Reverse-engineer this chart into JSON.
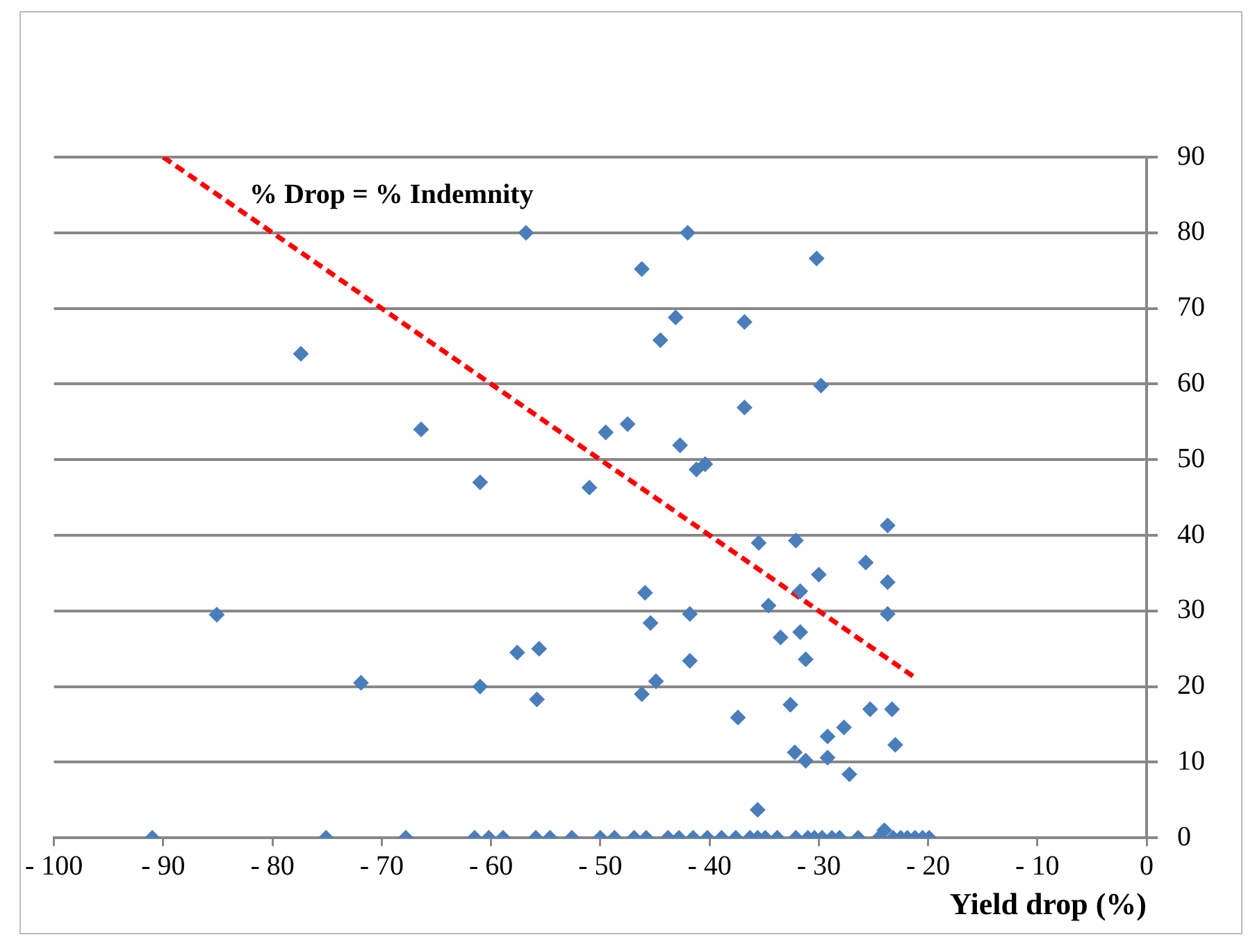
{
  "chart_data": {
    "type": "scatter",
    "xlabel": "Yield drop (%)",
    "xlim": [
      -100,
      0
    ],
    "xticks": [
      {
        "value": -100,
        "label": "- 100"
      },
      {
        "value": -90,
        "label": "- 90"
      },
      {
        "value": -80,
        "label": "- 80"
      },
      {
        "value": -70,
        "label": "- 70"
      },
      {
        "value": -60,
        "label": "- 60"
      },
      {
        "value": -50,
        "label": "- 50"
      },
      {
        "value": -40,
        "label": "- 40"
      },
      {
        "value": -30,
        "label": "- 30"
      },
      {
        "value": -20,
        "label": "- 20"
      },
      {
        "value": -10,
        "label": "- 10"
      },
      0
    ],
    "ylim": [
      0,
      90
    ],
    "yticks": [
      0,
      10,
      20,
      30,
      40,
      50,
      60,
      70,
      80,
      90
    ],
    "grid": "y",
    "legend": false,
    "marker": "diamond",
    "series": [
      {
        "color": "#4a7ebb",
        "x": [
          -77.4,
          -66.4,
          -85.1,
          -71.9,
          -61,
          -61,
          -56.8,
          -57.6,
          -55.6,
          -55.8,
          -51,
          -49.5,
          -47.5,
          -46.2,
          -45.9,
          -45.4,
          -46.2,
          -44.9,
          -42,
          -43.1,
          -44.5,
          -42.7,
          -41.2,
          -40.4,
          -41.8,
          -41.8,
          -36.8,
          -36.8,
          -37.4,
          -35.6,
          -35.5,
          -32.1,
          -34.6,
          -33.5,
          -31.7,
          -31.7,
          -31.2,
          -32.6,
          -30,
          -30.2,
          -29.8,
          -29.2,
          -32.2,
          -31.2,
          -29.2,
          -27.7,
          -27.2,
          -25.7,
          -25.3,
          -23.7,
          -23.7,
          -23.7,
          -23.3,
          -23,
          -24,
          -91,
          -75.1,
          -67.8,
          -61.5,
          -60.2,
          -58.9,
          -55.9,
          -54.6,
          -52.6,
          -50,
          -48.7,
          -46.9,
          -45.8,
          -43.8,
          -42.8,
          -41.5,
          -40.2,
          -38.9,
          -37.6,
          -36.3,
          -35.6,
          -34.9,
          -33.8,
          -32.1,
          -31,
          -30.4,
          -29.7,
          -28.8,
          -28.1,
          -26.4,
          -24.5,
          -23.2,
          -22.5,
          -21.9,
          -21.2,
          -20.5,
          -19.9
        ],
        "values": [
          64,
          54,
          29.5,
          20.5,
          47,
          20,
          80,
          24.5,
          25,
          18.3,
          46.3,
          53.6,
          54.7,
          75.2,
          32.4,
          28.4,
          19,
          20.7,
          80,
          68.8,
          65.8,
          51.9,
          48.7,
          49.4,
          29.6,
          23.4,
          68.2,
          56.9,
          15.9,
          3.7,
          39,
          39.3,
          30.7,
          26.5,
          32.6,
          27.2,
          23.6,
          17.6,
          34.8,
          76.6,
          59.8,
          13.4,
          11.3,
          10.2,
          10.6,
          14.6,
          8.4,
          36.4,
          17,
          41.3,
          33.8,
          29.6,
          17,
          12.3,
          1,
          0,
          0,
          0,
          0,
          0,
          0,
          0,
          0,
          0,
          0,
          0,
          0,
          0,
          0,
          0,
          0,
          0,
          0,
          0,
          0,
          0,
          0,
          0,
          0,
          0,
          0,
          0,
          0,
          0,
          0,
          0,
          0,
          0,
          0,
          0,
          0,
          0
        ]
      },
      {
        "type": "line",
        "name": "% Drop = % Indemnity",
        "color": "#ff0000",
        "line_style": "dashed",
        "marker": "none",
        "x": [
          -90,
          -21
        ],
        "values": [
          90,
          21
        ]
      }
    ]
  }
}
